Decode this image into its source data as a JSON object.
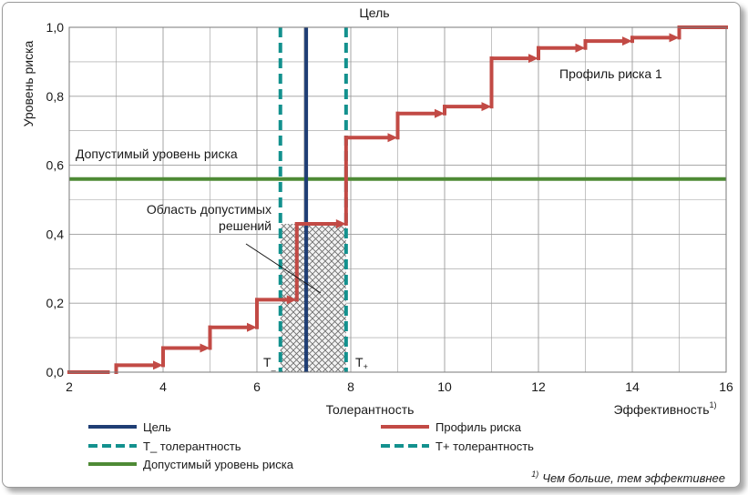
{
  "chart_data": {
    "type": "line",
    "title": "Цель",
    "xlabel": "Толерантность",
    "xlabel2": "Эффективность",
    "xlabel2_sup": "1)",
    "ylabel": "Уровень риска",
    "xlim": [
      2,
      16
    ],
    "ylim": [
      0,
      1.0
    ],
    "x_ticks": [
      2,
      4,
      6,
      8,
      10,
      12,
      14,
      16
    ],
    "y_ticks": [
      0,
      0.2,
      0.4,
      0.6,
      0.8,
      1.0
    ],
    "y_tick_labels": [
      "0,0",
      "0,2",
      "0,4",
      "0,6",
      "0,8",
      "1,0"
    ],
    "grid": true,
    "target_x": 7.05,
    "t_minus_x": 6.5,
    "t_plus_x": 7.9,
    "t_minus_label": "T",
    "t_minus_sub": "_",
    "t_plus_label": "T",
    "t_plus_sub": "+",
    "acceptable_level": 0.56,
    "acceptable_label": "Допустимый уровень риска",
    "series": [
      {
        "name": "Профиль риска 1",
        "steps": [
          {
            "x0": 2,
            "x1": 3,
            "y": 0.0
          },
          {
            "x0": 3,
            "x1": 4,
            "y": 0.02
          },
          {
            "x0": 4,
            "x1": 5,
            "y": 0.07
          },
          {
            "x0": 5,
            "x1": 6,
            "y": 0.13
          },
          {
            "x0": 6,
            "x1": 6.85,
            "y": 0.21
          },
          {
            "x0": 6.85,
            "x1": 7.9,
            "y": 0.43
          },
          {
            "x0": 7.9,
            "x1": 9,
            "y": 0.68
          },
          {
            "x0": 9,
            "x1": 10,
            "y": 0.75
          },
          {
            "x0": 10,
            "x1": 11,
            "y": 0.77
          },
          {
            "x0": 11,
            "x1": 12,
            "y": 0.91
          },
          {
            "x0": 12,
            "x1": 13,
            "y": 0.94
          },
          {
            "x0": 13,
            "x1": 14,
            "y": 0.96
          },
          {
            "x0": 14,
            "x1": 15,
            "y": 0.97
          },
          {
            "x0": 15,
            "x1": 16,
            "y": 1.0
          }
        ]
      }
    ],
    "annotations": {
      "profile_label": "Профиль риска 1",
      "feasible_line1": "Область допустимых",
      "feasible_line2": "решений"
    },
    "legend": [
      {
        "key": "target",
        "label": "Цель"
      },
      {
        "key": "tminus",
        "label": "T_ толерантность"
      },
      {
        "key": "acceptable",
        "label": "Допустимый уровень риска"
      },
      {
        "key": "profile",
        "label": "Профиль риска"
      },
      {
        "key": "tplus",
        "label": "T+ толерантность"
      }
    ],
    "footnote_sup": "1)",
    "footnote": "Чем больше, тем эффективнее",
    "colors": {
      "target": "#1f3e74",
      "tolerance": "#13918e",
      "acceptable": "#4e8a35",
      "profile": "#c24a45",
      "grid": "#9c9c9c"
    }
  }
}
